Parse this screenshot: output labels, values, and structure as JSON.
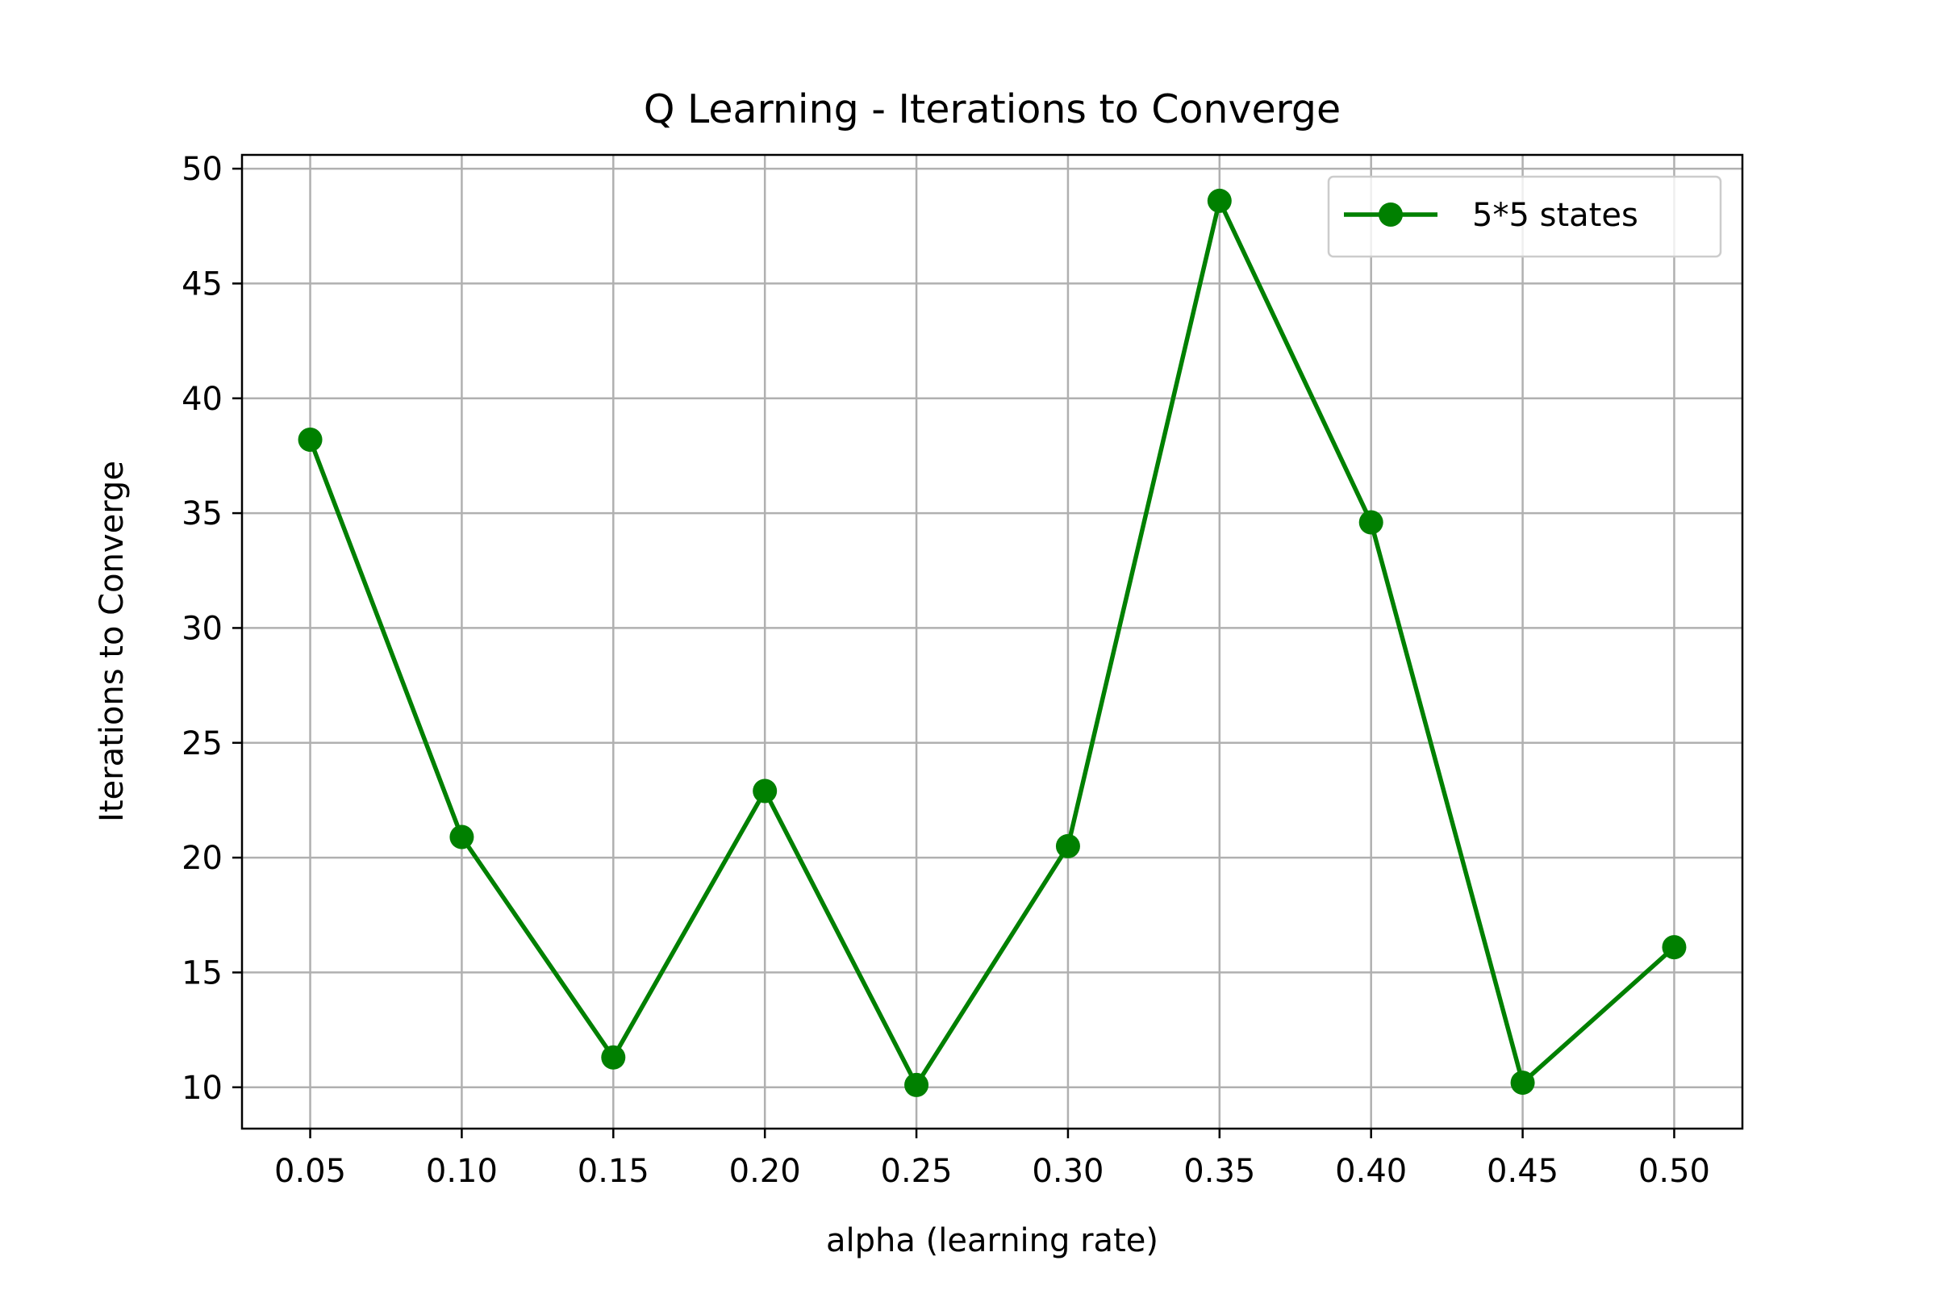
{
  "chart_data": {
    "type": "line",
    "title": "Q Learning - Iterations to Converge",
    "xlabel": "alpha (learning rate)",
    "ylabel": "Iterations to Converge",
    "x": [
      0.05,
      0.1,
      0.15,
      0.2,
      0.25,
      0.3,
      0.35,
      0.4,
      0.45,
      0.5
    ],
    "x_tick_labels": [
      "0.05",
      "0.10",
      "0.15",
      "0.20",
      "0.25",
      "0.30",
      "0.35",
      "0.40",
      "0.45",
      "0.50"
    ],
    "y_ticks": [
      10,
      15,
      20,
      25,
      30,
      35,
      40,
      45,
      50
    ],
    "y_tick_labels": [
      "10",
      "15",
      "20",
      "25",
      "30",
      "35",
      "40",
      "45",
      "50"
    ],
    "xlim": [
      0.0275,
      0.5225
    ],
    "ylim": [
      8.2,
      50.6
    ],
    "grid": true,
    "legend_position": "top-right",
    "series": [
      {
        "name": "5*5 states",
        "color": "#008000",
        "marker": "circle",
        "values": [
          38.2,
          20.9,
          11.3,
          22.9,
          10.1,
          20.5,
          48.6,
          34.6,
          10.2,
          16.1
        ]
      }
    ]
  }
}
